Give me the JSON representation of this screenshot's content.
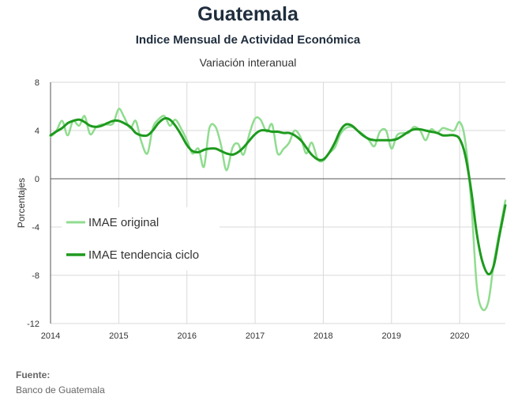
{
  "header": {
    "title": "Guatemala",
    "subtitle": "Indice Mensual de  Actividad Económica",
    "subsubtitle": "Variación interanual"
  },
  "footer": {
    "source_label": "Fuente:",
    "source_text": "Banco de Guatemala"
  },
  "colors": {
    "original": "#8fdc8f",
    "trend": "#1e9a1e",
    "grid": "#d9d9d9",
    "axis": "#555555"
  },
  "chart_data": {
    "type": "line",
    "xlabel": "",
    "ylabel": "Porcentajes",
    "xlim": [
      2014,
      2020.67
    ],
    "ylim": [
      -12,
      8
    ],
    "x_ticks": [
      2014,
      2015,
      2016,
      2017,
      2018,
      2019,
      2020
    ],
    "x_tick_labels": [
      "2014",
      "2015",
      "2016",
      "2017",
      "2018",
      "2019",
      "2020"
    ],
    "y_ticks": [
      8,
      4,
      0,
      -4,
      -8,
      -12
    ],
    "y_tick_labels": [
      "8",
      "4",
      "0",
      "-4",
      "-8",
      "-12"
    ],
    "grid": true,
    "legend_position": "middle-left",
    "series": [
      {
        "name": "IMAE original",
        "points": [
          [
            2014.0,
            3.5
          ],
          [
            2014.08,
            3.9
          ],
          [
            2014.17,
            4.8
          ],
          [
            2014.25,
            3.6
          ],
          [
            2014.33,
            4.8
          ],
          [
            2014.42,
            4.4
          ],
          [
            2014.5,
            5.2
          ],
          [
            2014.58,
            3.7
          ],
          [
            2014.67,
            4.3
          ],
          [
            2014.75,
            4.5
          ],
          [
            2014.83,
            4.5
          ],
          [
            2014.92,
            4.6
          ],
          [
            2015.0,
            5.8
          ],
          [
            2015.08,
            5.1
          ],
          [
            2015.17,
            4.2
          ],
          [
            2015.25,
            4.8
          ],
          [
            2015.33,
            3.1
          ],
          [
            2015.42,
            2.1
          ],
          [
            2015.5,
            4.2
          ],
          [
            2015.58,
            4.9
          ],
          [
            2015.67,
            5.2
          ],
          [
            2015.75,
            4.4
          ],
          [
            2015.83,
            4.9
          ],
          [
            2015.92,
            4.1
          ],
          [
            2016.0,
            3.2
          ],
          [
            2016.08,
            2.1
          ],
          [
            2016.17,
            2.5
          ],
          [
            2016.25,
            1.0
          ],
          [
            2016.33,
            4.2
          ],
          [
            2016.42,
            4.3
          ],
          [
            2016.5,
            2.8
          ],
          [
            2016.58,
            0.7
          ],
          [
            2016.67,
            2.6
          ],
          [
            2016.75,
            2.9
          ],
          [
            2016.83,
            2.0
          ],
          [
            2016.92,
            3.8
          ],
          [
            2017.0,
            5.0
          ],
          [
            2017.08,
            4.9
          ],
          [
            2017.17,
            3.9
          ],
          [
            2017.25,
            4.5
          ],
          [
            2017.33,
            2.1
          ],
          [
            2017.42,
            2.5
          ],
          [
            2017.5,
            3.0
          ],
          [
            2017.58,
            4.0
          ],
          [
            2017.67,
            3.4
          ],
          [
            2017.75,
            2.1
          ],
          [
            2017.83,
            3.0
          ],
          [
            2017.92,
            1.6
          ],
          [
            2018.0,
            1.5
          ],
          [
            2018.08,
            2.1
          ],
          [
            2018.17,
            2.6
          ],
          [
            2018.25,
            3.7
          ],
          [
            2018.33,
            4.2
          ],
          [
            2018.42,
            4.3
          ],
          [
            2018.5,
            4.0
          ],
          [
            2018.58,
            3.7
          ],
          [
            2018.67,
            3.2
          ],
          [
            2018.75,
            2.7
          ],
          [
            2018.83,
            3.9
          ],
          [
            2018.92,
            4.0
          ],
          [
            2019.0,
            2.5
          ],
          [
            2019.08,
            3.6
          ],
          [
            2019.17,
            3.8
          ],
          [
            2019.25,
            3.8
          ],
          [
            2019.33,
            4.3
          ],
          [
            2019.42,
            4.0
          ],
          [
            2019.5,
            3.2
          ],
          [
            2019.58,
            4.1
          ],
          [
            2019.67,
            3.8
          ],
          [
            2019.75,
            4.2
          ],
          [
            2019.83,
            4.1
          ],
          [
            2019.92,
            4.0
          ],
          [
            2020.0,
            4.7
          ],
          [
            2020.08,
            3.2
          ],
          [
            2020.17,
            -2.0
          ],
          [
            2020.25,
            -8.8
          ],
          [
            2020.33,
            -10.8
          ],
          [
            2020.42,
            -10.2
          ],
          [
            2020.5,
            -7.0
          ],
          [
            2020.58,
            -4.5
          ],
          [
            2020.67,
            -1.8
          ]
        ]
      },
      {
        "name": "IMAE tendencia ciclo",
        "points": [
          [
            2014.0,
            3.6
          ],
          [
            2014.08,
            3.9
          ],
          [
            2014.17,
            4.2
          ],
          [
            2014.25,
            4.6
          ],
          [
            2014.33,
            4.8
          ],
          [
            2014.42,
            4.9
          ],
          [
            2014.5,
            4.7
          ],
          [
            2014.58,
            4.4
          ],
          [
            2014.67,
            4.3
          ],
          [
            2014.75,
            4.4
          ],
          [
            2014.83,
            4.6
          ],
          [
            2014.92,
            4.8
          ],
          [
            2015.0,
            4.8
          ],
          [
            2015.08,
            4.6
          ],
          [
            2015.17,
            4.3
          ],
          [
            2015.25,
            3.8
          ],
          [
            2015.33,
            3.6
          ],
          [
            2015.42,
            3.6
          ],
          [
            2015.5,
            4.0
          ],
          [
            2015.58,
            4.6
          ],
          [
            2015.67,
            5.0
          ],
          [
            2015.75,
            4.9
          ],
          [
            2015.83,
            4.4
          ],
          [
            2015.92,
            3.6
          ],
          [
            2016.0,
            2.8
          ],
          [
            2016.08,
            2.3
          ],
          [
            2016.17,
            2.2
          ],
          [
            2016.25,
            2.4
          ],
          [
            2016.33,
            2.5
          ],
          [
            2016.42,
            2.5
          ],
          [
            2016.5,
            2.3
          ],
          [
            2016.58,
            2.1
          ],
          [
            2016.67,
            2.0
          ],
          [
            2016.75,
            2.2
          ],
          [
            2016.83,
            2.6
          ],
          [
            2016.92,
            3.2
          ],
          [
            2017.0,
            3.7
          ],
          [
            2017.08,
            4.0
          ],
          [
            2017.17,
            4.0
          ],
          [
            2017.25,
            3.9
          ],
          [
            2017.33,
            3.9
          ],
          [
            2017.42,
            3.8
          ],
          [
            2017.5,
            3.8
          ],
          [
            2017.58,
            3.6
          ],
          [
            2017.67,
            3.2
          ],
          [
            2017.75,
            2.6
          ],
          [
            2017.83,
            2.0
          ],
          [
            2017.92,
            1.6
          ],
          [
            2018.0,
            1.6
          ],
          [
            2018.08,
            2.1
          ],
          [
            2018.17,
            3.0
          ],
          [
            2018.25,
            4.0
          ],
          [
            2018.33,
            4.5
          ],
          [
            2018.42,
            4.4
          ],
          [
            2018.5,
            4.0
          ],
          [
            2018.58,
            3.6
          ],
          [
            2018.67,
            3.3
          ],
          [
            2018.75,
            3.2
          ],
          [
            2018.83,
            3.2
          ],
          [
            2018.92,
            3.2
          ],
          [
            2019.0,
            3.2
          ],
          [
            2019.08,
            3.3
          ],
          [
            2019.17,
            3.6
          ],
          [
            2019.25,
            3.9
          ],
          [
            2019.33,
            4.1
          ],
          [
            2019.42,
            4.1
          ],
          [
            2019.5,
            4.0
          ],
          [
            2019.58,
            3.9
          ],
          [
            2019.67,
            3.8
          ],
          [
            2019.75,
            3.6
          ],
          [
            2019.83,
            3.6
          ],
          [
            2019.92,
            3.6
          ],
          [
            2020.0,
            3.3
          ],
          [
            2020.08,
            2.0
          ],
          [
            2020.17,
            -1.0
          ],
          [
            2020.25,
            -4.5
          ],
          [
            2020.33,
            -6.8
          ],
          [
            2020.42,
            -7.9
          ],
          [
            2020.5,
            -7.2
          ],
          [
            2020.58,
            -4.8
          ],
          [
            2020.67,
            -2.2
          ]
        ]
      }
    ]
  }
}
